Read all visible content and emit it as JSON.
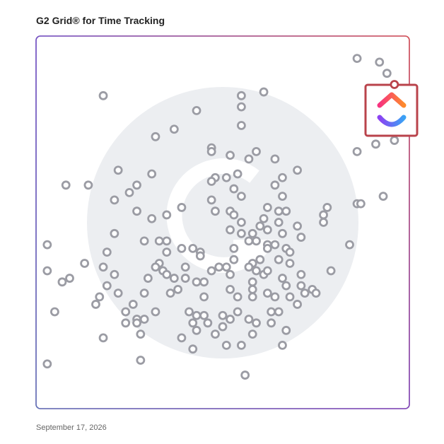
{
  "chart_data": {
    "type": "scatter",
    "title": "G2 Grid® for Time Tracking",
    "xlim": [
      0,
      100
    ],
    "ylim": [
      0,
      100
    ],
    "color": "#9b9ca4",
    "x": [
      86,
      92,
      94,
      18,
      61,
      55,
      55,
      43,
      55,
      37,
      32,
      47,
      59,
      57,
      52,
      47,
      86,
      91,
      96,
      64,
      70,
      22,
      31,
      48,
      51,
      54,
      47,
      8,
      14,
      27,
      25,
      21,
      53,
      64,
      66,
      93,
      55,
      66,
      47,
      86,
      87,
      39,
      62,
      78,
      48,
      52,
      65,
      67,
      27,
      35,
      31,
      77,
      77,
      55,
      53,
      61,
      65,
      70,
      52,
      55,
      58,
      60,
      62,
      66,
      71,
      21,
      3,
      29,
      33,
      35,
      39,
      42,
      44,
      35,
      64,
      62,
      59,
      57,
      53,
      62,
      67,
      68,
      19,
      13,
      18,
      21,
      33,
      32,
      34,
      40,
      44,
      53,
      58,
      60,
      65,
      68,
      84,
      79,
      3,
      9,
      7,
      19,
      30,
      35,
      37,
      40,
      43,
      47,
      49,
      51,
      52,
      57,
      59,
      61,
      62,
      66,
      71,
      71,
      67,
      74,
      75,
      72,
      68,
      64,
      62,
      58,
      58,
      54,
      58,
      52,
      45,
      45,
      38,
      36,
      29,
      17,
      22,
      16,
      26,
      24,
      27,
      27,
      29,
      32,
      41,
      43,
      45,
      50,
      54,
      63,
      65,
      70,
      5,
      42,
      46,
      50,
      52,
      57,
      59,
      63,
      67,
      24,
      18,
      28,
      39,
      43,
      48,
      42,
      51,
      55,
      58,
      66,
      3,
      28,
      56
    ],
    "values": [
      94,
      93,
      90,
      84,
      85,
      84,
      81,
      80,
      76,
      75,
      73,
      70,
      69,
      67,
      68,
      69,
      69,
      71,
      72,
      67,
      64,
      64,
      63,
      62,
      62,
      63,
      61,
      60,
      60,
      60,
      58,
      56,
      59,
      60,
      62,
      57,
      57,
      57,
      56,
      55,
      55,
      54,
      54,
      54,
      53,
      53,
      53,
      53,
      53,
      52,
      51,
      52,
      50,
      50,
      52,
      51,
      50,
      49,
      48,
      47,
      47,
      49,
      48,
      47,
      46,
      47,
      44,
      45,
      45,
      45,
      43,
      43,
      42,
      42,
      44,
      44,
      45,
      45,
      43,
      43,
      43,
      42,
      42,
      39,
      38,
      36,
      39,
      38,
      37,
      38,
      41,
      40,
      39,
      40,
      40,
      39,
      44,
      37,
      37,
      35,
      34,
      33,
      35,
      36,
      35,
      35,
      34,
      37,
      38,
      38,
      36,
      38,
      37,
      36,
      37,
      35,
      36,
      33,
      33,
      32,
      31,
      31,
      30,
      30,
      31,
      32,
      34,
      30,
      30,
      32,
      30,
      34,
      32,
      31,
      31,
      30,
      31,
      28,
      28,
      26,
      24,
      23,
      24,
      26,
      26,
      25,
      25,
      25,
      26,
      26,
      26,
      28,
      26,
      23,
      23,
      22,
      24,
      24,
      23,
      23,
      21,
      23,
      19,
      20,
      19,
      21,
      20,
      16,
      17,
      17,
      20,
      17,
      12,
      13,
      9
    ],
    "highlight": {
      "x": 96,
      "y": 87,
      "color": "#b9434b"
    }
  },
  "footer_date": "September 17, 2026"
}
